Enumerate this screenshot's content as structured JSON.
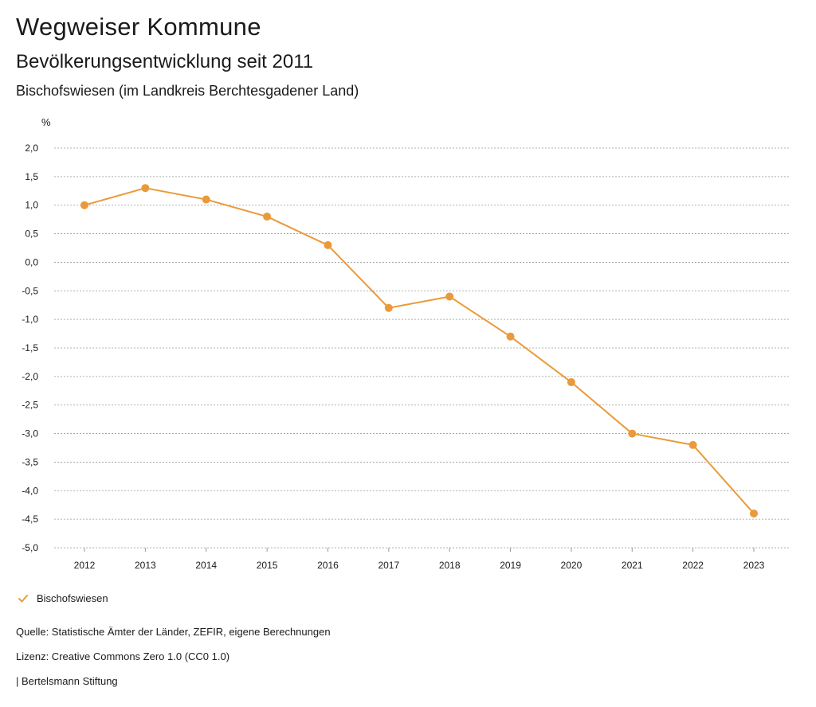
{
  "header": {
    "title": "Wegweiser Kommune",
    "subtitle": "Bevölkerungsentwicklung seit 2011",
    "region": "Bischofswiesen (im Landkreis Berchtesgadener Land)"
  },
  "legend": {
    "label": "Bischofswiesen",
    "color": "#ea9a3a",
    "icon": "check-icon"
  },
  "footer": {
    "source": "Quelle: Statistische Ämter der Länder, ZEFIR, eigene Berechnungen",
    "license": "Lizenz: Creative Commons Zero 1.0 (CC0 1.0)",
    "publisher": "| Bertelsmann Stiftung"
  },
  "chart_data": {
    "type": "line",
    "ylabel": "%",
    "ylim": [
      -5.0,
      2.0
    ],
    "yticks": [
      "2,0",
      "1,5",
      "1,0",
      "0,5",
      "0,0",
      "-0,5",
      "-1,0",
      "-1,5",
      "-2,0",
      "-2,5",
      "-3,0",
      "-3,5",
      "-4,0",
      "-4,5",
      "-5,0"
    ],
    "ytick_values": [
      2.0,
      1.5,
      1.0,
      0.5,
      0.0,
      -0.5,
      -1.0,
      -1.5,
      -2.0,
      -2.5,
      -3.0,
      -3.5,
      -4.0,
      -4.5,
      -5.0
    ],
    "categories": [
      "2012",
      "2013",
      "2014",
      "2015",
      "2016",
      "2017",
      "2018",
      "2019",
      "2020",
      "2021",
      "2022",
      "2023"
    ],
    "series": [
      {
        "name": "Bischofswiesen",
        "color": "#ea9a3a",
        "values": [
          1.0,
          1.3,
          1.1,
          0.8,
          0.3,
          -0.8,
          -0.6,
          -1.3,
          -2.1,
          -3.0,
          -3.2,
          -4.4
        ]
      }
    ],
    "grid": true,
    "legend_position": "bottom-left"
  }
}
